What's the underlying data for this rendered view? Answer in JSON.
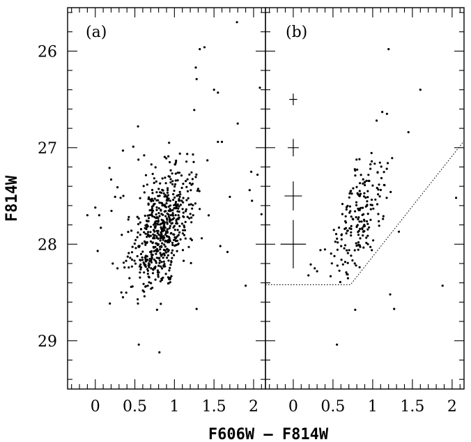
{
  "chart_data": [
    {
      "type": "scatter",
      "panel_label": "(a)",
      "xlabel": "F606W – F814W",
      "ylabel": "F814W",
      "xlim": [
        -0.35,
        2.15
      ],
      "ylim": [
        29.5,
        25.55
      ],
      "y_inverted": true,
      "xticks": [
        0,
        0.5,
        1,
        1.5,
        2
      ],
      "xtick_labels": [
        "0",
        "0.5",
        "1",
        "1.5",
        "2"
      ],
      "yticks": [
        26,
        27,
        28,
        29
      ],
      "ytick_labels": [
        "26",
        "27",
        "28",
        "29"
      ],
      "grid": false,
      "legend": "none",
      "points_note": "approx. 600 stars; distribution centred near color 0.9, magnitude 27.8",
      "points": [
        [
          1.32,
          25.98
        ],
        [
          1.38,
          25.96
        ],
        [
          1.79,
          25.7
        ],
        [
          1.27,
          26.17
        ],
        [
          1.28,
          26.29
        ],
        [
          1.5,
          26.4
        ],
        [
          1.55,
          26.43
        ],
        [
          2.08,
          26.38
        ],
        [
          1.25,
          26.61
        ],
        [
          0.48,
          26.99
        ],
        [
          0.54,
          26.78
        ],
        [
          1.8,
          26.75
        ],
        [
          1.55,
          26.94
        ],
        [
          1.6,
          26.94
        ],
        [
          0.0,
          27.62
        ],
        [
          -0.1,
          27.7
        ],
        [
          0.03,
          28.07
        ],
        [
          0.05,
          27.7
        ],
        [
          0.07,
          27.83
        ],
        [
          0.18,
          27.21
        ],
        [
          0.2,
          27.33
        ],
        [
          0.25,
          27.51
        ],
        [
          0.28,
          27.41
        ],
        [
          0.32,
          27.52
        ],
        [
          0.35,
          27.03
        ],
        [
          0.22,
          28.2
        ],
        [
          0.28,
          28.25
        ],
        [
          0.33,
          28.5
        ],
        [
          0.35,
          28.55
        ],
        [
          1.97,
          27.25
        ],
        [
          2.05,
          27.28
        ],
        [
          1.95,
          27.44
        ],
        [
          1.98,
          27.55
        ],
        [
          2.1,
          27.69
        ],
        [
          1.9,
          28.43
        ],
        [
          0.55,
          29.04
        ],
        [
          0.81,
          29.12
        ],
        [
          1.28,
          28.67
        ],
        [
          0.78,
          28.68
        ],
        [
          1.7,
          27.51
        ],
        [
          1.58,
          28.02
        ],
        [
          1.67,
          28.08
        ]
      ]
    },
    {
      "type": "scatter",
      "panel_label": "(b)",
      "xlabel": "F606W – F814W",
      "ylabel": "",
      "xlim": [
        -0.35,
        2.15
      ],
      "ylim": [
        29.5,
        25.55
      ],
      "y_inverted": true,
      "xticks": [
        0,
        0.5,
        1,
        1.5,
        2
      ],
      "xtick_labels": [
        "0",
        "0.5",
        "1",
        "1.5",
        "2"
      ],
      "yticks": [
        26,
        27,
        28,
        29
      ],
      "ytick_labels": [],
      "grid": false,
      "legend": "none",
      "error_bars": [
        {
          "x": 0.0,
          "y": 26.5,
          "xerr": 0.05,
          "yerr": 0.06
        },
        {
          "x": 0.0,
          "y": 27.0,
          "xerr": 0.07,
          "yerr": 0.09
        },
        {
          "x": 0.0,
          "y": 27.5,
          "xerr": 0.11,
          "yerr": 0.15
        },
        {
          "x": 0.0,
          "y": 28.0,
          "xerr": 0.16,
          "yerr": 0.25
        }
      ],
      "completeness_limit": [
        [
          -0.35,
          28.42
        ],
        [
          0.72,
          28.42
        ],
        [
          2.15,
          26.93
        ]
      ],
      "points_note": "approx. 200 stars; distribution centred near color 0.9, magnitude 27.75",
      "points": [
        [
          1.2,
          25.98
        ],
        [
          1.6,
          26.4
        ],
        [
          1.12,
          26.63
        ],
        [
          1.18,
          26.65
        ],
        [
          1.05,
          26.72
        ],
        [
          1.45,
          26.84
        ],
        [
          0.22,
          28.21
        ],
        [
          0.27,
          28.25
        ],
        [
          0.3,
          28.28
        ],
        [
          1.22,
          28.52
        ],
        [
          1.27,
          28.67
        ],
        [
          0.78,
          28.68
        ],
        [
          0.55,
          29.04
        ],
        [
          1.88,
          28.43
        ],
        [
          2.05,
          27.52
        ],
        [
          1.33,
          27.87
        ]
      ]
    }
  ]
}
